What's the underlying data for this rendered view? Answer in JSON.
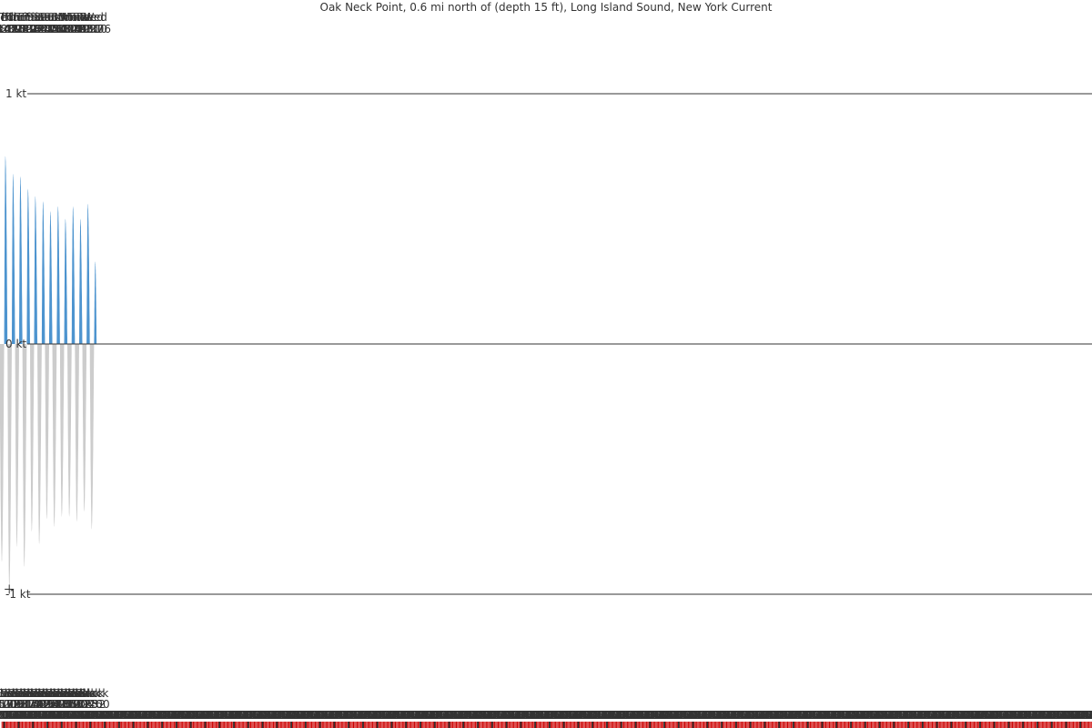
{
  "chart_data": {
    "type": "area",
    "title": "Oak Neck Point, 0.6 mi north of (depth 15 ft), Long Island Sound, New York Current",
    "y_axis": {
      "unit": "kt",
      "ylim": [
        -1.4,
        1.4
      ],
      "ticks": [
        {
          "value": 1,
          "label": "1 kt"
        },
        {
          "value": 0,
          "label": "0 kt"
        },
        {
          "value": -1,
          "label": "-1 kt"
        }
      ]
    },
    "colors": {
      "flood": "#4d94cf",
      "ebb": "#cccccc",
      "axis": "#333333",
      "grid": "#333333",
      "tick_red": "#cc0000"
    },
    "max_events": [
      {
        "day": "Wed",
        "time": "19:42",
        "speed_kt": -0.87
      },
      {
        "day": "Thu",
        "time": "01:39",
        "speed_kt": 0.75
      },
      {
        "day": "Thu",
        "time": "08:10",
        "speed_kt": -0.98
      },
      {
        "day": "Thu",
        "time": "14:24",
        "speed_kt": 0.68
      },
      {
        "day": "Thu",
        "time": "20:39",
        "speed_kt": -0.81
      },
      {
        "day": "Fri",
        "time": "02:39",
        "speed_kt": 0.67
      },
      {
        "day": "Fri",
        "time": "09:08",
        "speed_kt": -0.89
      },
      {
        "day": "Fri",
        "time": "15:27",
        "speed_kt": 0.62
      },
      {
        "day": "Fri",
        "time": "21:40",
        "speed_kt": -0.75
      },
      {
        "day": "Sat",
        "time": "03:44",
        "speed_kt": 0.59
      },
      {
        "day": "Sat",
        "time": "10:11",
        "speed_kt": -0.8
      },
      {
        "day": "Sat",
        "time": "16:34",
        "speed_kt": 0.57
      },
      {
        "day": "Sat",
        "time": "22:46",
        "speed_kt": -0.7
      },
      {
        "day": "Sun",
        "time": "04:54",
        "speed_kt": 0.53
      },
      {
        "day": "Sun",
        "time": "11:18",
        "speed_kt": -0.73
      },
      {
        "day": "Sun",
        "time": "17:40",
        "speed_kt": 0.55
      },
      {
        "day": "Sun",
        "time": "23:54",
        "speed_kt": -0.69
      },
      {
        "day": "Mon",
        "time": "06:04",
        "speed_kt": 0.5
      },
      {
        "day": "Mon",
        "time": "12:27",
        "speed_kt": -0.69
      },
      {
        "day": "Mon",
        "time": "18:41",
        "speed_kt": 0.55
      },
      {
        "day": "Tue",
        "time": "01:01",
        "speed_kt": -0.71
      },
      {
        "day": "Tue",
        "time": "07:09",
        "speed_kt": 0.5
      },
      {
        "day": "Tue",
        "time": "13:31",
        "speed_kt": -0.67
      },
      {
        "day": "Tue",
        "time": "19:37",
        "speed_kt": 0.56
      },
      {
        "day": "Wed",
        "time": "02:00",
        "speed_kt": -0.74
      },
      {
        "day": "Wed",
        "time": "08:06",
        "speed_kt": 0.33
      }
    ],
    "slack_events": [
      {
        "label": "Slack",
        "time": "23:37"
      },
      {
        "label": "Slack",
        "time": "05:09"
      },
      {
        "label": "Slack",
        "time": "12:23"
      },
      {
        "label": "Slack",
        "time": "17:51"
      },
      {
        "label": "Slack",
        "time": "00:37"
      },
      {
        "label": "Slack",
        "time": "06:07"
      },
      {
        "label": "Slack",
        "time": "13:24"
      },
      {
        "label": "Slack",
        "time": "18:52"
      },
      {
        "label": "Slack",
        "time": "01:42"
      },
      {
        "label": "Slack",
        "time": "07:09"
      },
      {
        "label": "Slack",
        "time": "14:27"
      },
      {
        "label": "Slack",
        "time": "19:54"
      },
      {
        "label": "Slack",
        "time": "02:50"
      },
      {
        "label": "Slack",
        "time": "08:13"
      },
      {
        "label": "Slack",
        "time": "15:30"
      },
      {
        "label": "Slack",
        "time": "20:56"
      },
      {
        "label": "Slack",
        "time": "03:59"
      },
      {
        "label": "Slack",
        "time": "09:19"
      },
      {
        "label": "Slack",
        "time": "16:30"
      },
      {
        "label": "Slack",
        "time": "21:57"
      },
      {
        "label": "Slack",
        "time": "05:04"
      },
      {
        "label": "Slack",
        "time": "10:23"
      },
      {
        "label": "Slack",
        "time": "17:26"
      },
      {
        "label": "Slack",
        "time": "22:52"
      },
      {
        "label": "Slack",
        "time": "06:00"
      }
    ],
    "hour_ticks": {
      "step_hours": 2,
      "first": "20:00"
    }
  }
}
